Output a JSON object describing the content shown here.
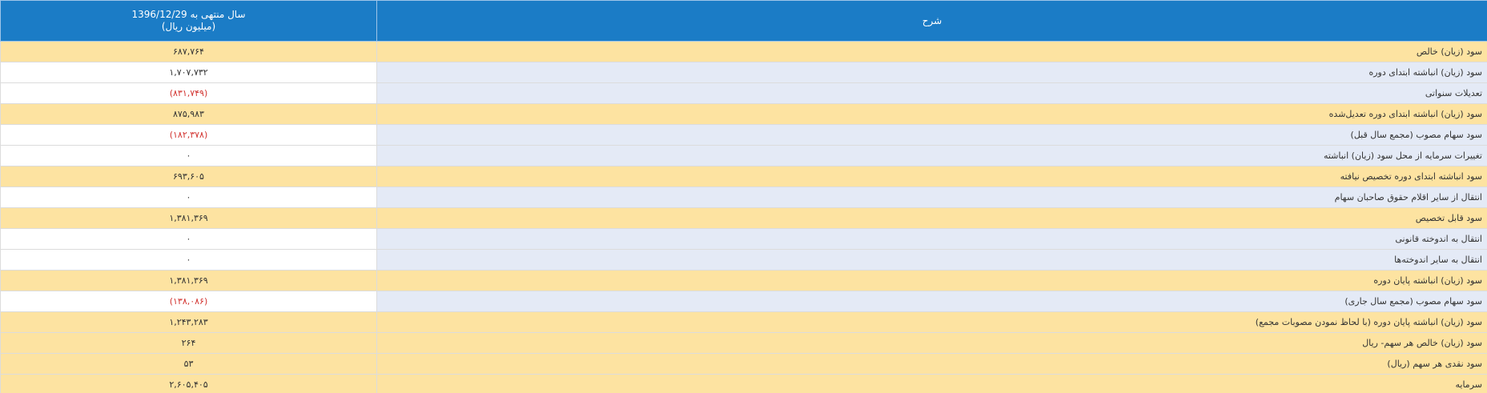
{
  "header": {
    "period": "سال منتهی به 1396/12/29",
    "unit": "(میلیون ریال)",
    "description": "شرح"
  },
  "table": {
    "rows": [
      {
        "label": "سود (زیان) خالص",
        "value": "۶۸۷,۷۶۴"
      },
      {
        "label": "سود (زیان) انباشته ابتدای دوره",
        "value": "۱,۷۰۷,۷۳۲"
      },
      {
        "label": "تعدیلات سنواتی",
        "value": "(۸۳۱,۷۴۹)"
      },
      {
        "label": "سود (زیان) انباشته ابتدای دوره تعدیل‌شده",
        "value": "۸۷۵,۹۸۳"
      },
      {
        "label": "سود سهام مصوب (مجمع سال قبل)",
        "value": "(۱۸۲,۳۷۸)"
      },
      {
        "label": "تغییرات سرمایه از محل سود (زیان) انباشته",
        "value": "۰"
      },
      {
        "label": "سود انباشته ابتدای دوره تخصیص نیافته",
        "value": "۶۹۳,۶۰۵"
      },
      {
        "label": "انتقال از سایر اقلام حقوق صاحبان سهام",
        "value": "۰"
      },
      {
        "label": "سود قابل تخصیص",
        "value": "۱,۳۸۱,۳۶۹"
      },
      {
        "label": "انتقال به اندوخته قانونی",
        "value": "۰"
      },
      {
        "label": "انتقال به سایر اندوخته‌ها",
        "value": "۰"
      },
      {
        "label": "سود (زیان) انباشته پایان دوره",
        "value": "۱,۳۸۱,۳۶۹"
      },
      {
        "label": "سود سهام مصوب (مجمع سال جاری)",
        "value": "(۱۳۸,۰۸۶)"
      },
      {
        "label": "سود (زیان) انباشته پایان دوره (با لحاظ نمودن مصوبات مجمع)",
        "value": "۱,۲۴۳,۲۸۳"
      },
      {
        "label": "سود (زیان) خالص هر سهم- ریال",
        "value": "۲۶۴"
      },
      {
        "label": "سود نقدی هر سهم (ریال)",
        "value": "۵۳"
      },
      {
        "label": "سرمایه",
        "value": "۲,۶۰۵,۴۰۵"
      }
    ]
  }
}
